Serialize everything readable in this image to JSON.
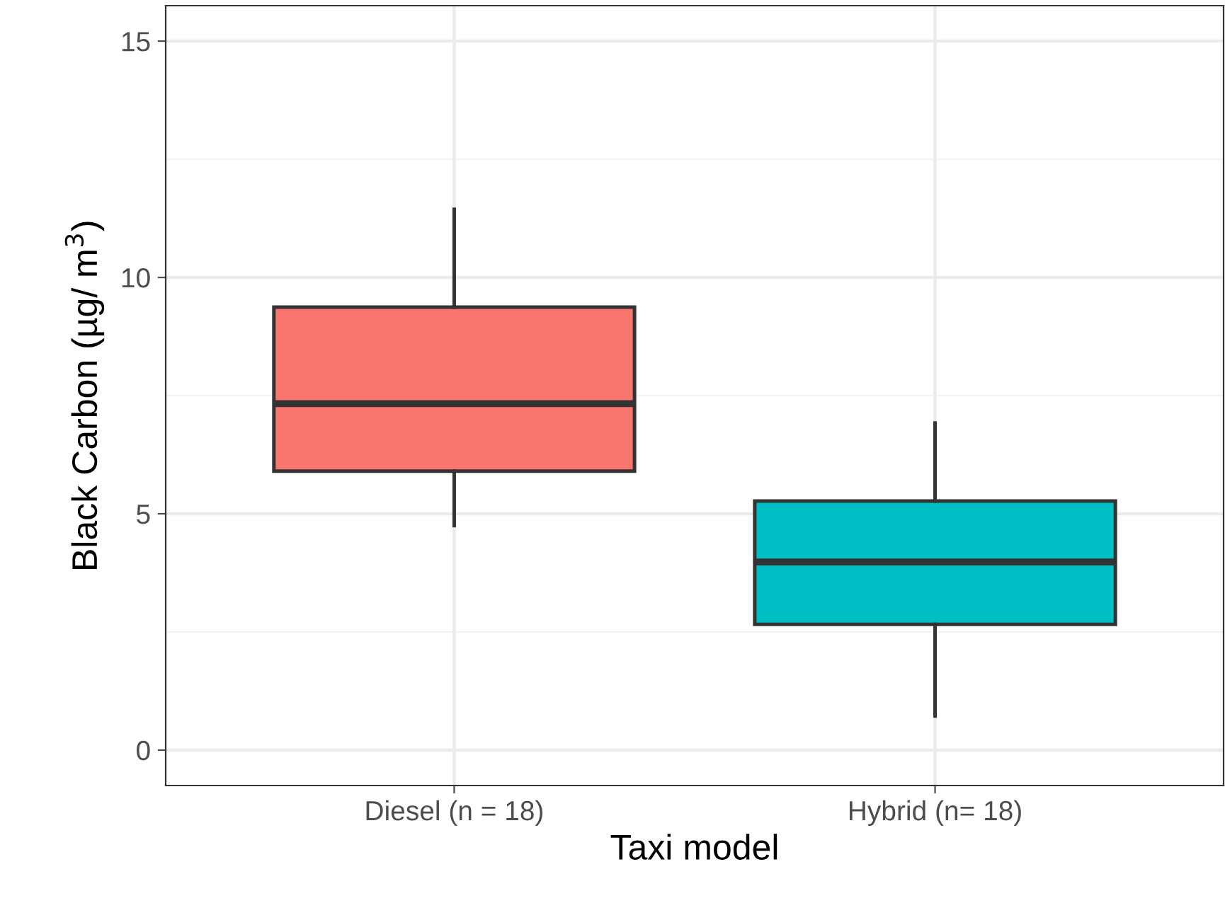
{
  "chart_data": {
    "type": "box",
    "xlabel": "Taxi model",
    "ylabel": "Black Carbon (µg/ m$^{3}$)",
    "categories": [
      "Diesel (n = 18)",
      "Hybrid (n= 18)"
    ],
    "colors": [
      "#f8766d",
      "#00bfc4"
    ],
    "boxes": [
      {
        "low": 4.75,
        "q1": 5.9,
        "median": 7.33,
        "q3": 9.37,
        "high": 11.44
      },
      {
        "low": 0.72,
        "q1": 2.66,
        "median": 3.98,
        "q3": 5.27,
        "high": 6.92
      }
    ],
    "ylim": [
      -0.75,
      15.75
    ],
    "yticks": [
      0,
      5,
      10,
      15
    ],
    "grid": true
  }
}
